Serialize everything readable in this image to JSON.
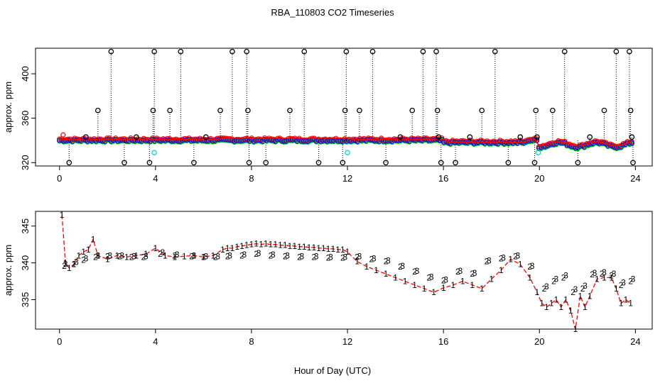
{
  "chart_data": [
    {
      "type": "scatter",
      "title": "RBA_110803  CO2 Timeseries",
      "xlabel": "",
      "ylabel": "approx. ppm",
      "xlim": [
        -1,
        24.7
      ],
      "ylim": [
        317,
        423
      ],
      "xticks": [
        0,
        4,
        8,
        12,
        16,
        20,
        24
      ],
      "yticks": [
        320,
        360,
        400
      ],
      "series": [
        {
          "name": "black",
          "color": "#000000",
          "marker": "circle",
          "baseline": 340,
          "spike_times": [
            0.4,
            1.1,
            1.6,
            2.15,
            2.7,
            3.2,
            3.75,
            3.9,
            3.95,
            4.6,
            5.05,
            5.6,
            6.1,
            6.7,
            7.2,
            7.8,
            7.85,
            7.9,
            8.6,
            9.6,
            10.2,
            10.8,
            11.8,
            11.9,
            11.95,
            12.5,
            13.05,
            13.6,
            14.2,
            14.7,
            15.15,
            15.7,
            15.75,
            15.8,
            15.9,
            16.5,
            17.1,
            17.6,
            18.15,
            18.7,
            19.2,
            19.8,
            19.85,
            19.9,
            20.55,
            21.05,
            21.6,
            22.1,
            22.7,
            23.2,
            23.75,
            23.8,
            23.85,
            23.9
          ],
          "spike_values": [
            320,
            343,
            367,
            420,
            320,
            343,
            320,
            367,
            420,
            367,
            420,
            320,
            343,
            367,
            420,
            420,
            367,
            320,
            320,
            367,
            420,
            320,
            320,
            367,
            420,
            367,
            420,
            320,
            343,
            367,
            420,
            420,
            367,
            343,
            320,
            320,
            343,
            367,
            420,
            320,
            343,
            320,
            367,
            343,
            367,
            420,
            320,
            343,
            367,
            420,
            420,
            367,
            343,
            320
          ]
        },
        {
          "name": "red",
          "color": "#ff0000",
          "marker": "circle"
        },
        {
          "name": "green",
          "color": "#00cc00",
          "marker": "circle"
        },
        {
          "name": "blue",
          "color": "#0000ff",
          "marker": "circle"
        },
        {
          "name": "cyan",
          "color": "#00cccc",
          "marker": "circle",
          "x": [
            3.95,
            12.0,
            19.95
          ],
          "y": [
            329,
            329,
            329
          ]
        }
      ]
    },
    {
      "type": "line",
      "title": "",
      "xlabel": "Hour of Day (UTC)",
      "ylabel": "approx. ppm",
      "xlim": [
        -1,
        24.7
      ],
      "ylim": [
        331,
        347
      ],
      "xticks": [
        0,
        4,
        8,
        12,
        16,
        20,
        24
      ],
      "yticks": [
        335,
        340,
        345
      ],
      "series": [
        {
          "name": "1",
          "color": "#ff0000",
          "marker_label": "1",
          "linestyle": "dashed",
          "x": [
            0.1,
            0.25,
            0.4,
            0.6,
            0.8,
            1.0,
            1.2,
            1.4,
            1.6,
            2.0,
            2.4,
            2.8,
            3.2,
            3.6,
            4.0,
            4.4,
            4.8,
            5.2,
            5.6,
            6.0,
            6.4,
            6.8,
            7.0,
            7.2,
            7.4,
            7.6,
            7.8,
            8.0,
            8.2,
            8.4,
            8.6,
            8.8,
            9.0,
            9.2,
            9.4,
            9.6,
            9.8,
            10.0,
            10.2,
            10.4,
            10.6,
            10.8,
            11.0,
            11.2,
            11.4,
            11.6,
            11.8,
            12.0,
            12.4,
            12.8,
            13.2,
            13.6,
            14.0,
            14.4,
            14.8,
            15.2,
            15.6,
            16.0,
            16.4,
            16.8,
            17.2,
            17.6,
            18.0,
            18.4,
            18.8,
            19.2,
            19.6,
            19.9,
            20.1,
            20.3,
            20.5,
            20.7,
            20.9,
            21.1,
            21.3,
            21.5,
            21.7,
            21.9,
            22.1,
            22.4,
            22.7,
            23.0,
            23.2,
            23.4,
            23.6,
            23.8
          ],
          "y": [
            346.5,
            340.0,
            339.3,
            339.8,
            341.0,
            341.5,
            341.8,
            343.2,
            341.0,
            340.5,
            341.0,
            340.8,
            341.0,
            341.2,
            342.0,
            341.0,
            340.8,
            340.9,
            341.0,
            340.8,
            341.0,
            341.8,
            342.0,
            342.0,
            342.2,
            342.3,
            342.4,
            342.5,
            342.6,
            342.5,
            342.6,
            342.5,
            342.5,
            342.4,
            342.4,
            342.3,
            342.3,
            342.2,
            342.2,
            342.1,
            342.1,
            342.0,
            342.0,
            341.9,
            341.9,
            341.8,
            341.8,
            341.5,
            340.2,
            339.5,
            339.0,
            338.5,
            338.0,
            337.5,
            337.0,
            336.5,
            336.0,
            336.6,
            337.0,
            337.5,
            337.0,
            336.5,
            337.8,
            339.0,
            340.5,
            339.8,
            338.0,
            336.0,
            334.5,
            334.0,
            334.5,
            335.0,
            334.0,
            335.0,
            333.5,
            331.0,
            335.5,
            334.0,
            335.5,
            337.8,
            338.0,
            338.0,
            336.5,
            334.5,
            335.0,
            334.5
          ]
        },
        {
          "name": "2",
          "color": "#00cc00",
          "marker_label": "2",
          "x": [
            0.2,
            0.6,
            1.0,
            1.5,
            2.0,
            2.5,
            3.0,
            3.5,
            4.2,
            4.8,
            5.5,
            6.0,
            6.5,
            7.0,
            7.6,
            8.2,
            8.8,
            9.4,
            10.0,
            10.6,
            11.2,
            11.8,
            12.4,
            13.0,
            13.6,
            14.2,
            14.8,
            15.4,
            16.0,
            16.6,
            17.2,
            17.8,
            18.4,
            19.0,
            19.6,
            20.2,
            20.6,
            21.0,
            21.4,
            21.8,
            22.2,
            22.6,
            23.0,
            23.4,
            23.8
          ],
          "y": [
            339.6,
            339.8,
            340.4,
            340.8,
            340.9,
            340.9,
            340.8,
            340.8,
            341.2,
            341.0,
            340.9,
            340.8,
            340.8,
            340.9,
            341.0,
            341.2,
            341.0,
            340.9,
            340.8,
            340.8,
            340.7,
            340.7,
            340.8,
            340.5,
            340.2,
            339.5,
            338.8,
            338.0,
            337.6,
            338.8,
            338.5,
            340.2,
            340.6,
            340.9,
            339.5,
            336.5,
            337.5,
            338.0,
            336.0,
            336.5,
            338.4,
            338.5,
            338.3,
            337.0,
            337.5
          ]
        },
        {
          "name": "3",
          "color": "#0000ff",
          "marker_label": "3",
          "x": [
            0.25,
            0.7,
            1.1,
            1.6,
            2.1,
            2.6,
            3.1,
            3.6,
            4.3,
            4.9,
            5.6,
            6.1,
            6.6,
            7.1,
            7.7,
            8.3,
            8.9,
            9.5,
            10.1,
            10.7,
            11.3,
            11.9,
            12.5,
            13.1,
            13.7,
            14.3,
            14.9,
            15.5,
            16.1,
            16.7,
            17.3,
            17.9,
            18.5,
            19.1,
            19.7,
            20.3,
            20.7,
            21.1,
            21.5,
            21.9,
            22.3,
            22.7,
            23.1,
            23.5,
            23.9
          ],
          "y": [
            339.8,
            340.1,
            340.6,
            341.0,
            341.0,
            341.0,
            340.9,
            340.9,
            341.4,
            341.1,
            341.0,
            340.9,
            340.9,
            341.0,
            341.1,
            341.3,
            341.1,
            341.0,
            340.9,
            340.9,
            340.8,
            340.8,
            340.9,
            340.6,
            340.3,
            339.6,
            338.9,
            338.1,
            337.7,
            338.9,
            338.6,
            340.3,
            340.7,
            341.0,
            339.6,
            336.8,
            337.8,
            338.3,
            336.4,
            336.9,
            338.6,
            338.7,
            338.5,
            337.3,
            337.8
          ]
        }
      ]
    }
  ]
}
